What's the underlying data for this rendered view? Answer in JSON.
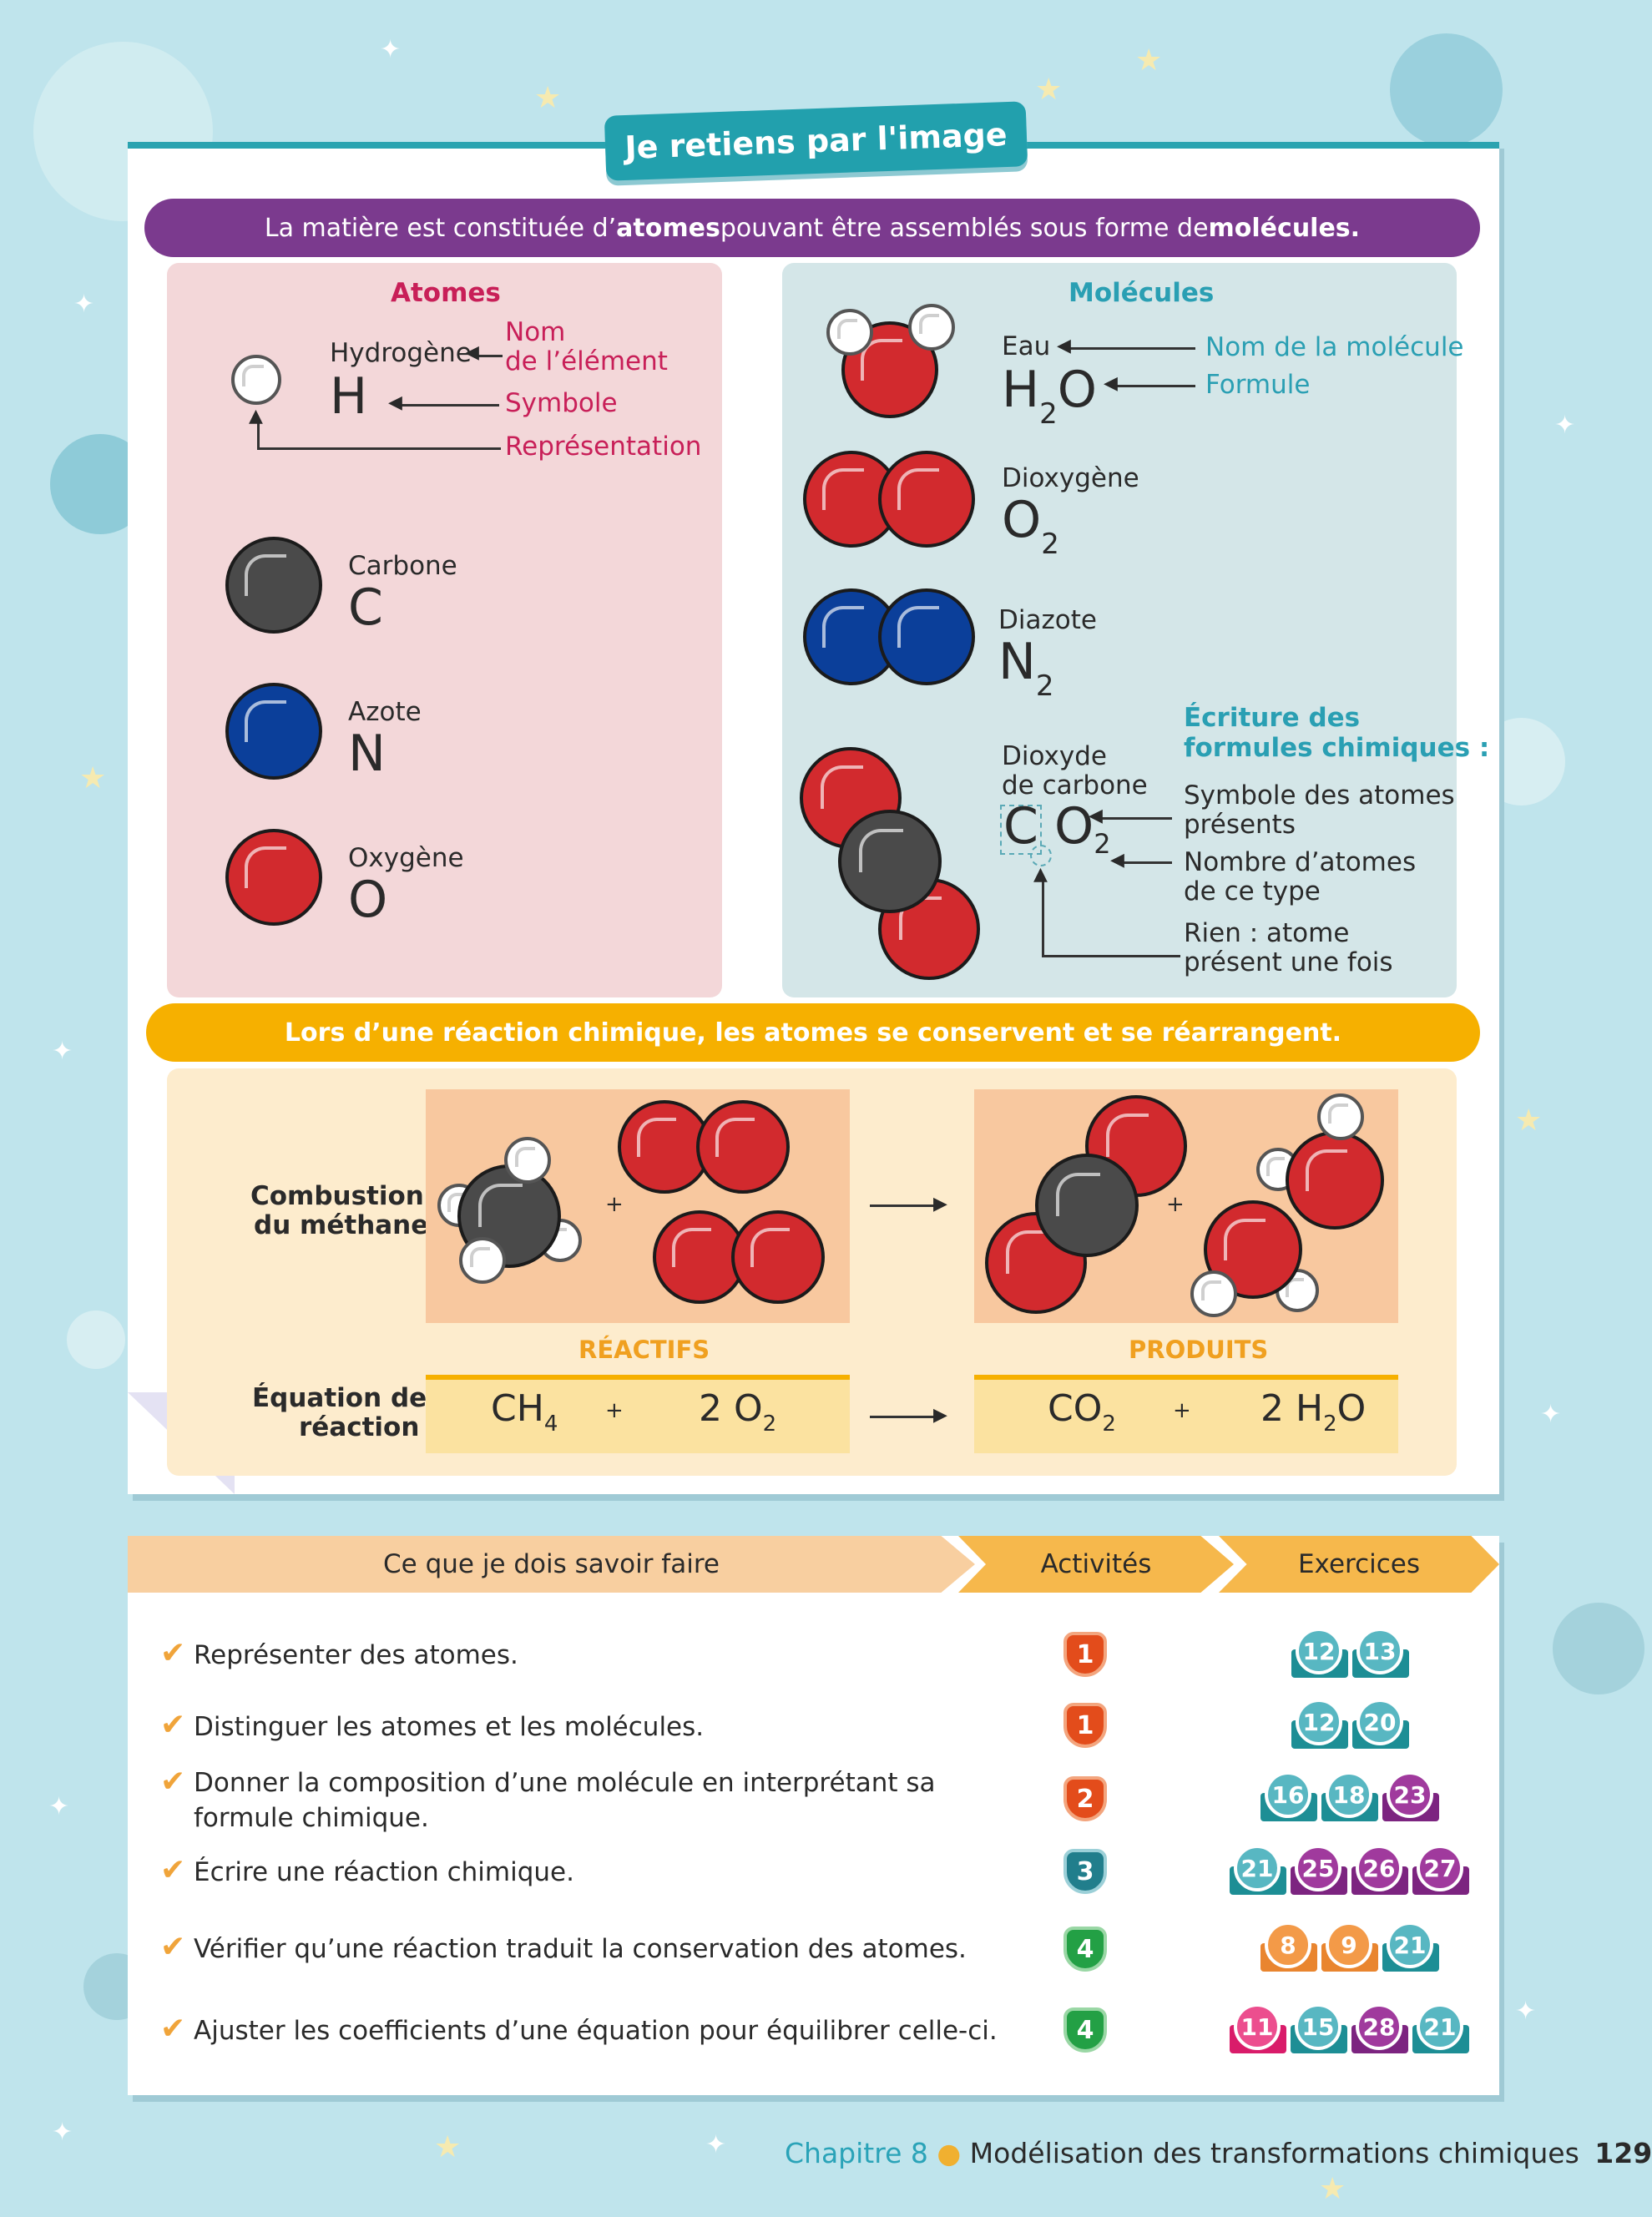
{
  "title": "Je retiens par l'image",
  "banner1": {
    "pre": "La matière est constituée d’",
    "b1": "atomes",
    "mid": " pouvant être assemblés sous forme de ",
    "b2": "molécules."
  },
  "atoms": {
    "heading": "Atomes",
    "h_name": "Hydrogène",
    "h_sym": "H",
    "legend_name_1": "Nom",
    "legend_name_2": "de l’élément",
    "legend_symbol": "Symbole",
    "legend_repr": "Représentation",
    "c_name": "Carbone",
    "c_sym": "C",
    "n_name": "Azote",
    "n_sym": "N",
    "o_name": "Oxygène",
    "o_sym": "O"
  },
  "molecules": {
    "heading": "Molécules",
    "water_name": "Eau",
    "water_f": "H",
    "water_sub": "2",
    "water_f2": "O",
    "legend_name": "Nom de la molécule",
    "legend_formula": "Formule",
    "o2_name": "Dioxygène",
    "o2_f": "O",
    "o2_sub": "2",
    "n2_name": "Diazote",
    "n2_f": "N",
    "n2_sub": "2",
    "co2_name_1": "Dioxyde",
    "co2_name_2": "de carbone",
    "co2_f1": "C",
    "co2_f2": "O",
    "co2_sub": "2",
    "writing_title_1": "Écriture des",
    "writing_title_2": "formules chimiques :",
    "w1_a": "Symbole des atomes",
    "w1_b": "présents",
    "w2_a": "Nombre d’atomes",
    "w2_b": "de ce type",
    "w3_a": "Rien : atome",
    "w3_b": "présent une fois"
  },
  "banner2": "Lors d’une réaction chimique, les atomes se conservent et se réarrangent.",
  "reaction": {
    "combustion_1": "Combustion",
    "combustion_2": "du méthane",
    "equation_1": "Équation de",
    "equation_2": "réaction",
    "reactifs": "RÉACTIFS",
    "produits": "PRODUITS",
    "plus": "+",
    "r1": "CH",
    "r1_sub": "4",
    "r2": "2 O",
    "r2_sub": "2",
    "p1": "CO",
    "p1_sub": "2",
    "p2a": "2 H",
    "p2_sub": "2",
    "p2b": "O"
  },
  "table": {
    "col1": "Ce que je dois savoir faire",
    "col2": "Activités",
    "col3": "Exercices",
    "rows": [
      {
        "text": "Représenter des atomes.",
        "activity": "1",
        "exercises": [
          "12",
          "13"
        ]
      },
      {
        "text": "Distinguer les atomes et les molécules.",
        "activity": "1",
        "exercises": [
          "12",
          "20"
        ]
      },
      {
        "text": "Donner la composition d’une molécule en interprétant sa",
        "text2": "formule chimique.",
        "activity": "2",
        "exercises": [
          "16",
          "18",
          "23"
        ]
      },
      {
        "text": "Écrire une réaction chimique.",
        "activity": "3",
        "exercises": [
          "21",
          "25",
          "26",
          "27"
        ]
      },
      {
        "text": "Vérifier qu’une réaction traduit la conservation des atomes.",
        "activity": "4",
        "exercises": [
          "8",
          "9",
          "21"
        ]
      },
      {
        "text": "Ajuster les coefficients d’une équation pour équilibrer celle-ci.",
        "activity": "4",
        "exercises": [
          "11",
          "15",
          "28",
          "21"
        ]
      }
    ],
    "check": "✔"
  },
  "footer": {
    "chapter": "Chapitre 8",
    "title": "Modélisation des transformations chimiques",
    "page": "129"
  },
  "colors": {
    "purple": "#7b3a8e",
    "yellow": "#f6b000",
    "teal": "#22a0ad"
  }
}
